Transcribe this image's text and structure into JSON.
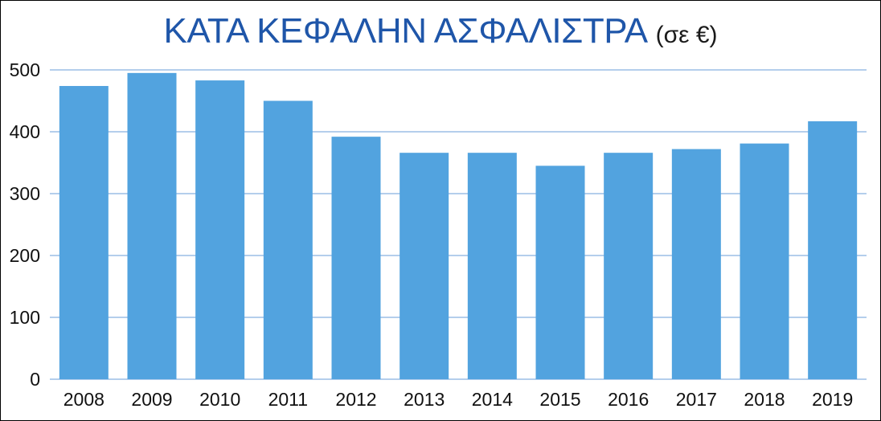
{
  "chart_data": {
    "type": "bar",
    "title": "ΚΑΤΑ ΚΕΦΑΛΗΝ ΑΣΦΑΛΙΣΤΡΑ",
    "subtitle": "(σε €)",
    "categories": [
      "2008",
      "2009",
      "2010",
      "2011",
      "2012",
      "2013",
      "2014",
      "2015",
      "2016",
      "2017",
      "2018",
      "2019"
    ],
    "values": [
      474,
      495,
      483,
      450,
      392,
      366,
      366,
      345,
      366,
      372,
      381,
      417
    ],
    "y_ticks": [
      "0",
      "100",
      "200",
      "300",
      "400",
      "500"
    ],
    "ylim": [
      0,
      500
    ],
    "xlabel": "",
    "ylabel": "",
    "grid": true,
    "bar_color": "#52a3df",
    "grid_color": "#9cbde6",
    "title_color": "#1f56a9"
  }
}
